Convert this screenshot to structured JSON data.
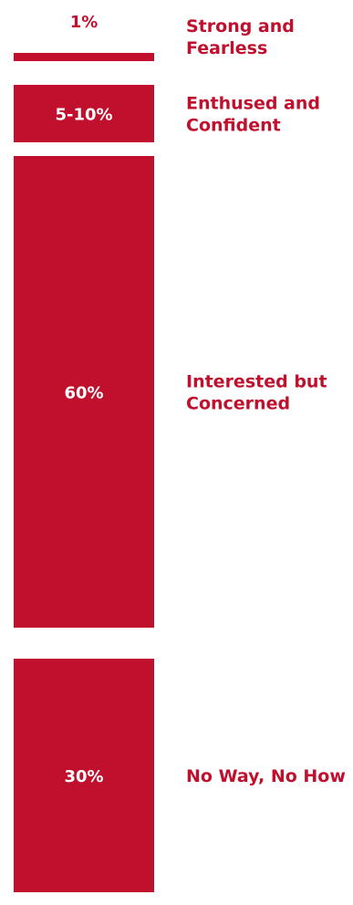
{
  "chart_data": {
    "type": "bar",
    "orientation": "stacked-vertical",
    "color": "#c0102e",
    "segments": [
      {
        "label": "Strong and Fearless",
        "value_label": "1%",
        "value": 1
      },
      {
        "label": "Enthused and Confident",
        "value_label": "5-10%",
        "value": 7.5
      },
      {
        "label": "Interested but Concerned",
        "value_label": "60%",
        "value": 60
      },
      {
        "label": "No Way, No How",
        "value_label": "30%",
        "value": 30
      }
    ]
  }
}
